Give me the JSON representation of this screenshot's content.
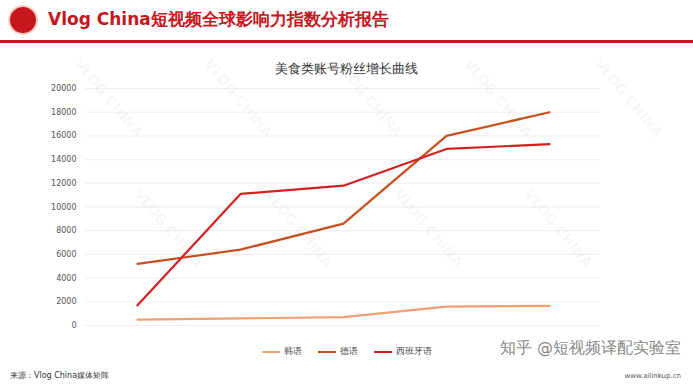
{
  "header": {
    "title": "Vlog  China短视频全球影响力指数分析报告"
  },
  "chart_data": {
    "type": "line",
    "title": "美食类账号粉丝增长曲线",
    "categories": [
      null,
      null,
      null,
      null,
      null
    ],
    "series": [
      {
        "name": "韩语",
        "color": "#f0a070",
        "values": [
          500,
          600,
          700,
          1600,
          1650
        ]
      },
      {
        "name": "德语",
        "color": "#c8501e",
        "values": [
          5200,
          6400,
          8600,
          16000,
          18000
        ]
      },
      {
        "name": "西班牙语",
        "color": "#d42020",
        "values": [
          1700,
          11100,
          11800,
          14900,
          15300
        ]
      }
    ],
    "ylim": [
      0,
      20000
    ],
    "yticks": [
      0,
      2000,
      4000,
      6000,
      8000,
      10000,
      12000,
      14000,
      16000,
      18000,
      20000
    ],
    "grid": true,
    "legend": "bottom",
    "tick_labels": "y"
  },
  "footer": {
    "source": "来源：Vlog China媒体矩阵",
    "website": "www.ailinkup.cn",
    "credit": "知乎 @短视频译配实验室",
    "watermark": "VLOG CHINA"
  }
}
